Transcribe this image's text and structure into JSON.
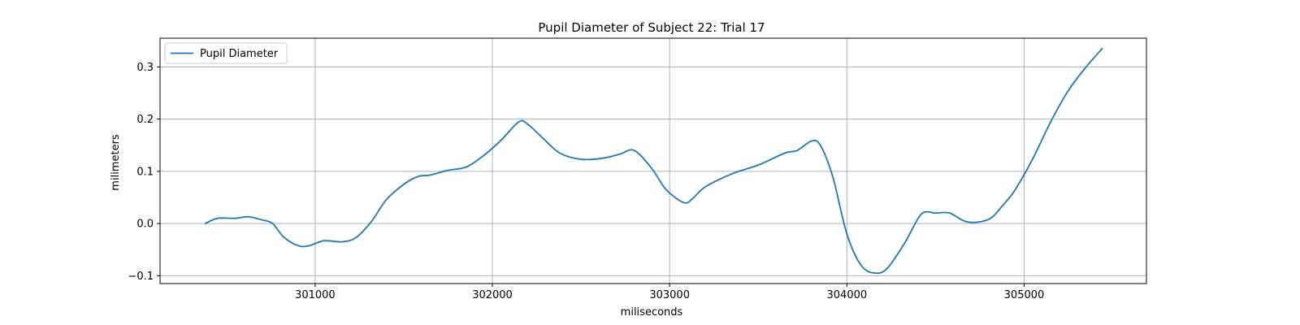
{
  "chart_data": {
    "type": "line",
    "title": "Pupil Diameter of Subject 22: Trial 17",
    "xlabel": "miliseconds",
    "ylabel": "milimeters",
    "xlim": [
      300125,
      305690
    ],
    "ylim": [
      -0.115,
      0.355
    ],
    "xticks": [
      301000,
      302000,
      303000,
      304000,
      305000
    ],
    "xtick_labels": [
      "301000",
      "302000",
      "303000",
      "304000",
      "305000"
    ],
    "yticks": [
      -0.1,
      0.0,
      0.1,
      0.2,
      0.3
    ],
    "ytick_labels": [
      "−0.1",
      "0.0",
      "0.1",
      "0.2",
      "0.3"
    ],
    "grid": true,
    "legend": {
      "position": "top-left",
      "entries": [
        "Pupil Diameter"
      ]
    },
    "colors": {
      "series": "#1f77b4",
      "grid": "#b0b0b0"
    },
    "series": [
      {
        "name": "Pupil Diameter",
        "x": [
          300380,
          300450,
          300550,
          300620,
          300700,
          300760,
          300820,
          300900,
          300960,
          301050,
          301150,
          301230,
          301320,
          301400,
          301500,
          301580,
          301650,
          301750,
          301850,
          301950,
          302050,
          302150,
          302200,
          302280,
          302380,
          302500,
          302620,
          302720,
          302800,
          302900,
          302980,
          303080,
          303130,
          303200,
          303350,
          303500,
          303650,
          303720,
          303800,
          303850,
          303920,
          304000,
          304080,
          304160,
          304230,
          304330,
          304420,
          304500,
          304580,
          304680,
          304800,
          304880,
          304950,
          305050,
          305150,
          305250,
          305350,
          305440
        ],
        "y": [
          0.0,
          0.01,
          0.01,
          0.013,
          0.007,
          0.0,
          -0.025,
          -0.042,
          -0.043,
          -0.033,
          -0.035,
          -0.027,
          0.005,
          0.045,
          0.075,
          0.09,
          0.093,
          0.102,
          0.108,
          0.13,
          0.16,
          0.195,
          0.19,
          0.165,
          0.135,
          0.123,
          0.125,
          0.133,
          0.14,
          0.105,
          0.065,
          0.04,
          0.048,
          0.07,
          0.095,
          0.112,
          0.135,
          0.14,
          0.158,
          0.15,
          0.09,
          -0.02,
          -0.08,
          -0.095,
          -0.085,
          -0.035,
          0.018,
          0.02,
          0.02,
          0.003,
          0.008,
          0.035,
          0.065,
          0.125,
          0.195,
          0.255,
          0.3,
          0.335
        ]
      }
    ]
  }
}
